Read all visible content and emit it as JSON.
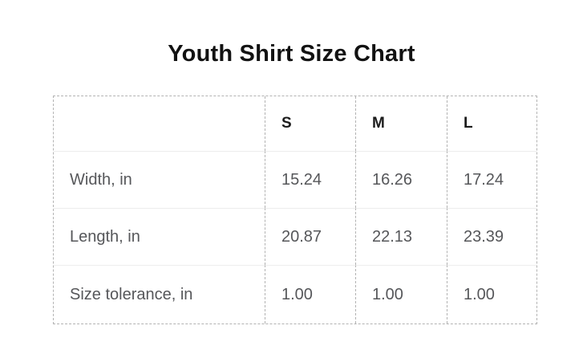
{
  "title": "Youth Shirt Size Chart",
  "table": {
    "columns": [
      "",
      "S",
      "M",
      "L"
    ],
    "rows": [
      {
        "label": "Width, in",
        "values": [
          "15.24",
          "16.26",
          "17.24"
        ]
      },
      {
        "label": "Length, in",
        "values": [
          "20.87",
          "22.13",
          "23.39"
        ]
      },
      {
        "label": "Size tolerance, in",
        "values": [
          "1.00",
          "1.00",
          "1.00"
        ]
      }
    ]
  },
  "colors": {
    "background": "#ffffff",
    "title_text": "#121212",
    "header_text": "#1b1b1b",
    "body_text": "#56575a",
    "dashed_border": "#b3b3b3",
    "row_divider": "#ededed"
  },
  "chart_data": {
    "type": "table",
    "title": "Youth Shirt Size Chart",
    "columns": [
      "",
      "S",
      "M",
      "L"
    ],
    "rows": [
      [
        "Width, in",
        15.24,
        16.26,
        17.24
      ],
      [
        "Length, in",
        20.87,
        22.13,
        23.39
      ],
      [
        "Size tolerance, in",
        1.0,
        1.0,
        1.0
      ]
    ],
    "units": "inches"
  }
}
